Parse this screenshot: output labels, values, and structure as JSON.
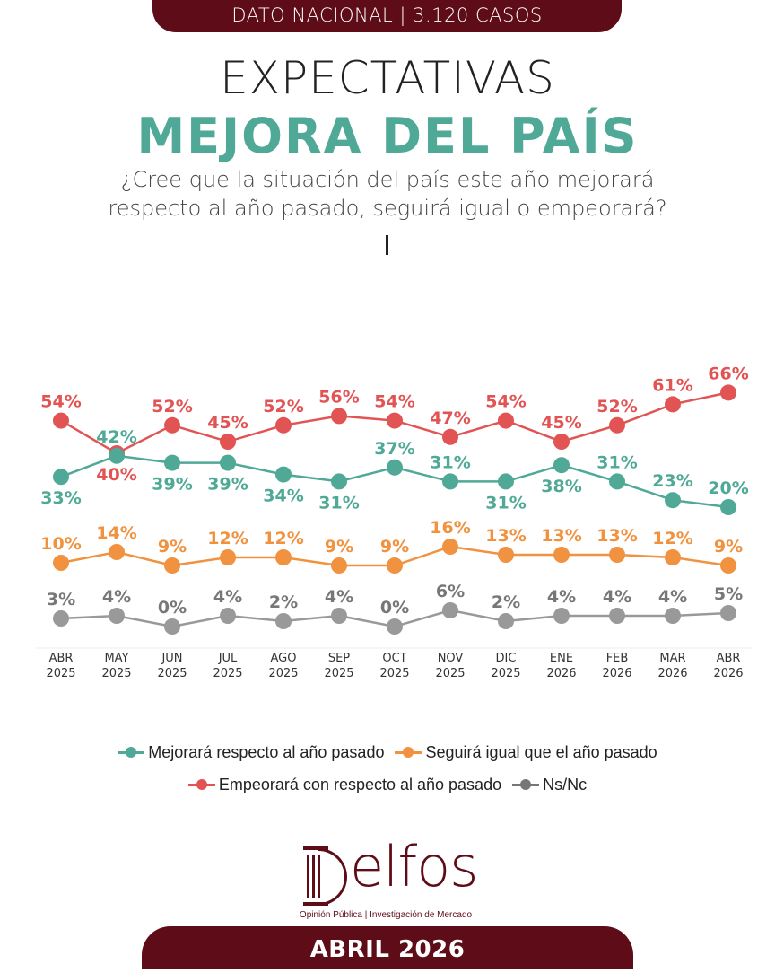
{
  "header": {
    "banner": "DATO NACIONAL | 3.120 CASOS",
    "title_line1": "EXPECTATIVAS",
    "title_line2": "MEJORA DEL PAÍS",
    "question": "¿Cree que la situación del país este año mejorará respecto al año pasado, seguirá igual o empeorará?"
  },
  "colors": {
    "brand": "#5e0d18",
    "mejorara": "#4fa996",
    "seguira": "#f0923f",
    "empeorara": "#e25454",
    "nsnc": "#999999"
  },
  "chart_data": {
    "type": "line",
    "title": "MEJORA DEL PAÍS",
    "xlabel": "",
    "ylabel": "",
    "unit": "%",
    "grid": false,
    "legend_position": "bottom",
    "categories": [
      [
        "ABR",
        "2025"
      ],
      [
        "MAY",
        "2025"
      ],
      [
        "JUN",
        "2025"
      ],
      [
        "JUL",
        "2025"
      ],
      [
        "AGO",
        "2025"
      ],
      [
        "SEP",
        "2025"
      ],
      [
        "OCT",
        "2025"
      ],
      [
        "NOV",
        "2025"
      ],
      [
        "DIC",
        "2025"
      ],
      [
        "ENE",
        "2026"
      ],
      [
        "FEB",
        "2026"
      ],
      [
        "MAR",
        "2026"
      ],
      [
        "ABR",
        "2026"
      ]
    ],
    "series": [
      {
        "key": "empeorara",
        "name": "Empeorará con respecto al año pasado",
        "color": "#e25454",
        "values": [
          54,
          40,
          52,
          45,
          52,
          56,
          54,
          47,
          54,
          45,
          52,
          61,
          66
        ],
        "label_pos": [
          "above",
          "below",
          "above",
          "above",
          "above",
          "above",
          "above",
          "above",
          "above",
          "above",
          "above",
          "above",
          "above"
        ]
      },
      {
        "key": "mejorara",
        "name": "Mejorará respecto al año pasado",
        "color": "#4fa996",
        "values": [
          33,
          42,
          39,
          39,
          34,
          31,
          37,
          31,
          31,
          38,
          31,
          23,
          20
        ],
        "label_pos": [
          "below",
          "above",
          "below",
          "below",
          "below",
          "below",
          "above",
          "above",
          "below",
          "below",
          "above",
          "above",
          "above"
        ]
      },
      {
        "key": "seguira",
        "name": "Seguirá igual que el año pasado",
        "color": "#f0923f",
        "values": [
          10,
          14,
          9,
          12,
          12,
          9,
          9,
          16,
          13,
          13,
          13,
          12,
          9
        ],
        "label_pos": [
          "above",
          "above",
          "above",
          "above",
          "above",
          "above",
          "above",
          "above",
          "above",
          "above",
          "above",
          "above",
          "above"
        ]
      },
      {
        "key": "nsnc",
        "name": "Ns/Nc",
        "color": "#999999",
        "values": [
          3,
          4,
          0,
          4,
          2,
          4,
          0,
          6,
          2,
          4,
          4,
          4,
          5
        ],
        "label_pos": [
          "above",
          "above",
          "above",
          "above",
          "above",
          "above",
          "above",
          "above",
          "above",
          "above",
          "above",
          "above",
          "above"
        ]
      }
    ]
  },
  "legend": {
    "row1": [
      {
        "label": "Mejorará respecto al año pasado",
        "color": "#4fa996"
      },
      {
        "label": "Seguirá igual que el año pasado",
        "color": "#f0923f"
      }
    ],
    "row2": [
      {
        "label": "Empeorará con respecto al año pasado",
        "color": "#e25454"
      },
      {
        "label": "Ns/Nc",
        "color": "#999999"
      }
    ]
  },
  "footer": {
    "logo_word": "elfos",
    "tagline": "Opinión Pública | Investigación de Mercado",
    "date": "ABRIL 2026"
  }
}
